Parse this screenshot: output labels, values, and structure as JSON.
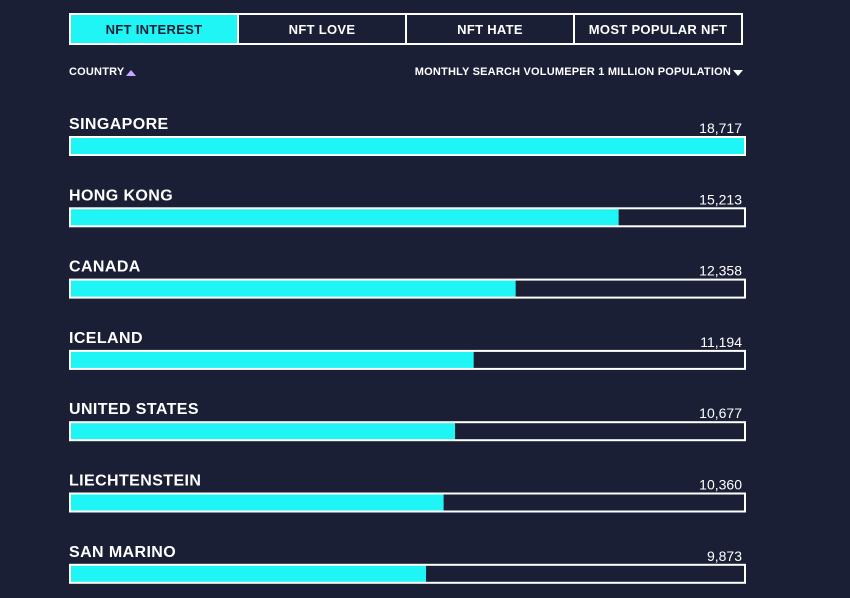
{
  "tabs": [
    {
      "label": "NFT INTEREST",
      "active": true
    },
    {
      "label": "NFT LOVE",
      "active": false
    },
    {
      "label": "NFT HATE",
      "active": false
    },
    {
      "label": "MOST POPULAR NFT",
      "active": false
    }
  ],
  "sort": {
    "country_label": "COUNTRY",
    "country_icon": "triangle-up-icon",
    "metric_label": "MONTHLY SEARCH VOLUMEPER 1 MILLION POPULATION",
    "metric_icon": "triangle-down-icon"
  },
  "colors": {
    "background": "#1a1f36",
    "bar_fill": "#1ff5f5",
    "bar_border": "#ffffff",
    "text": "#ffffff",
    "sort_active": "#c9a8ff"
  },
  "chart_data": {
    "type": "bar",
    "orientation": "horizontal",
    "categories": [
      "SINGAPORE",
      "HONG KONG",
      "CANADA",
      "ICELAND",
      "UNITED STATES",
      "LIECHTENSTEIN",
      "SAN MARINO"
    ],
    "values": [
      18717,
      15213,
      12358,
      11194,
      10677,
      10360,
      9873
    ],
    "value_labels": [
      "18,717",
      "15,213",
      "12,358",
      "11,194",
      "10,677",
      "10,360",
      "9,873"
    ],
    "xlim": [
      0,
      18717
    ],
    "grid": false,
    "legend": "none"
  }
}
